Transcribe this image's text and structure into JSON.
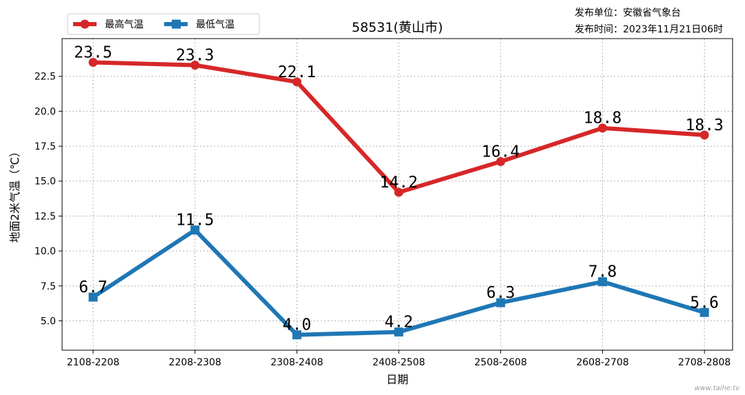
{
  "header": {
    "publisher_label": "发布单位：安徽省气象台",
    "time_label": "发布时间：2023年11月21日06时"
  },
  "watermark": "www.taihe.tv",
  "chart_data": {
    "type": "line",
    "title": "58531(黄山市)",
    "xlabel": "日期",
    "ylabel": "地面2米气温（℃）",
    "categories": [
      "2108-2208",
      "2208-2308",
      "2308-2408",
      "2408-2508",
      "2508-2608",
      "2608-2708",
      "2708-2808"
    ],
    "ylim": [
      2.9,
      25.2
    ],
    "yticks": [
      "5.0",
      "7.5",
      "10.0",
      "12.5",
      "15.0",
      "17.5",
      "20.0",
      "22.5"
    ],
    "grid": true,
    "legend_position": "top-left",
    "series": [
      {
        "name": "最高气温",
        "color": "#d62728",
        "marker": "circle",
        "values": [
          23.5,
          23.3,
          22.1,
          14.2,
          16.4,
          18.8,
          18.3
        ],
        "labels": [
          "23.5",
          "23.3",
          "22.1",
          "14.2",
          "16.4",
          "18.8",
          "18.3"
        ]
      },
      {
        "name": "最低气温",
        "color": "#1f77b4",
        "marker": "square",
        "values": [
          6.7,
          11.5,
          4.0,
          4.2,
          6.3,
          7.8,
          5.6
        ],
        "labels": [
          "6.7",
          "11.5",
          "4.0",
          "4.2",
          "6.3",
          "7.8",
          "5.6"
        ]
      }
    ]
  }
}
